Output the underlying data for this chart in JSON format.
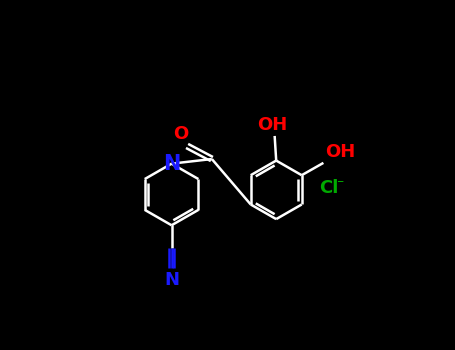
{
  "bg_color": "#000000",
  "bond_color": "#ffffff",
  "oh1_color": "#ff0000",
  "oh2_color": "#ff0000",
  "o_color": "#ff0000",
  "n_color": "#1a1aff",
  "cn_color": "#1a1aff",
  "cl_color": "#00aa00",
  "label_OH1": "OH",
  "label_OH2": "OH",
  "label_O": "O",
  "label_N": "N",
  "label_CN": "N",
  "label_Cl": "Cl",
  "line_width": 1.8,
  "font_size": 13
}
